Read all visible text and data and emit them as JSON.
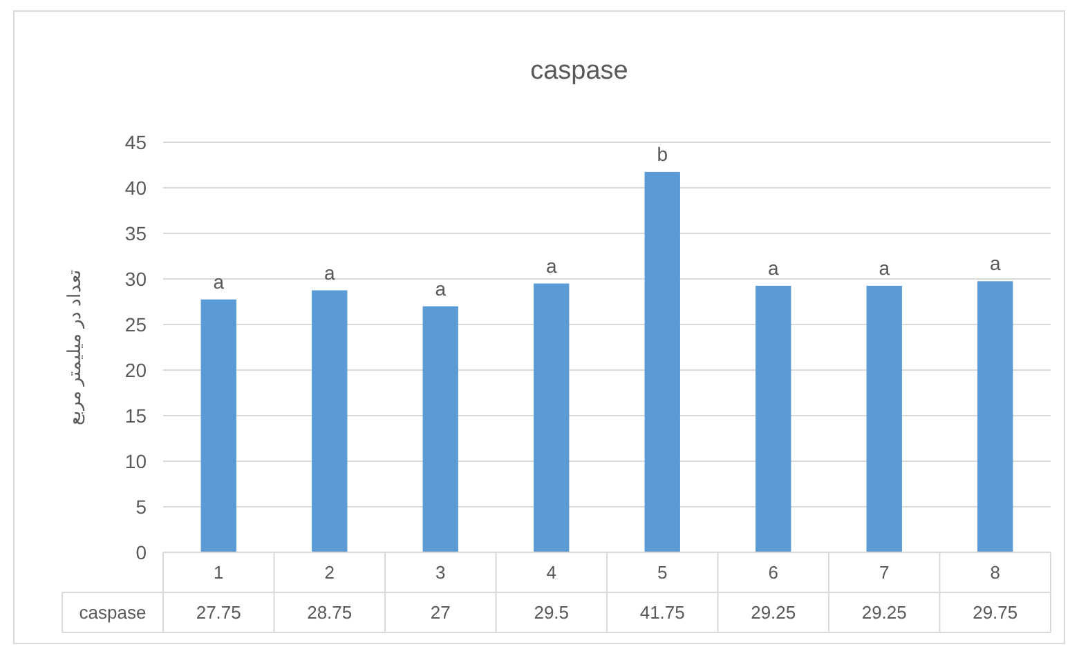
{
  "chart_data": {
    "type": "bar",
    "title": "caspase",
    "ylabel": "تعداد در میلیمتر مربع",
    "categories": [
      "1",
      "2",
      "3",
      "4",
      "5",
      "6",
      "7",
      "8"
    ],
    "series": [
      {
        "name": "caspase",
        "color": "#5b9bd5",
        "values": [
          27.75,
          28.75,
          27,
          29.5,
          41.75,
          29.25,
          29.25,
          29.75
        ]
      }
    ],
    "ylim": [
      0,
      45
    ],
    "yticks": [
      0,
      5,
      10,
      15,
      20,
      25,
      30,
      35,
      40,
      45
    ],
    "grid": "y",
    "data_labels": true,
    "annotations": [
      {
        "text": "a",
        "x": "1",
        "y": 27.75
      },
      {
        "text": "a",
        "x": "2",
        "y": 28.75
      },
      {
        "text": "a",
        "x": "3",
        "y": 27
      },
      {
        "text": "a",
        "x": "4",
        "y": 29.5
      },
      {
        "text": "b",
        "x": "5",
        "y": 41.75
      },
      {
        "text": "a",
        "x": "6",
        "y": 29.25
      },
      {
        "text": "a",
        "x": "7",
        "y": 29.25
      },
      {
        "text": "a",
        "x": "8",
        "y": 29.75
      }
    ]
  }
}
